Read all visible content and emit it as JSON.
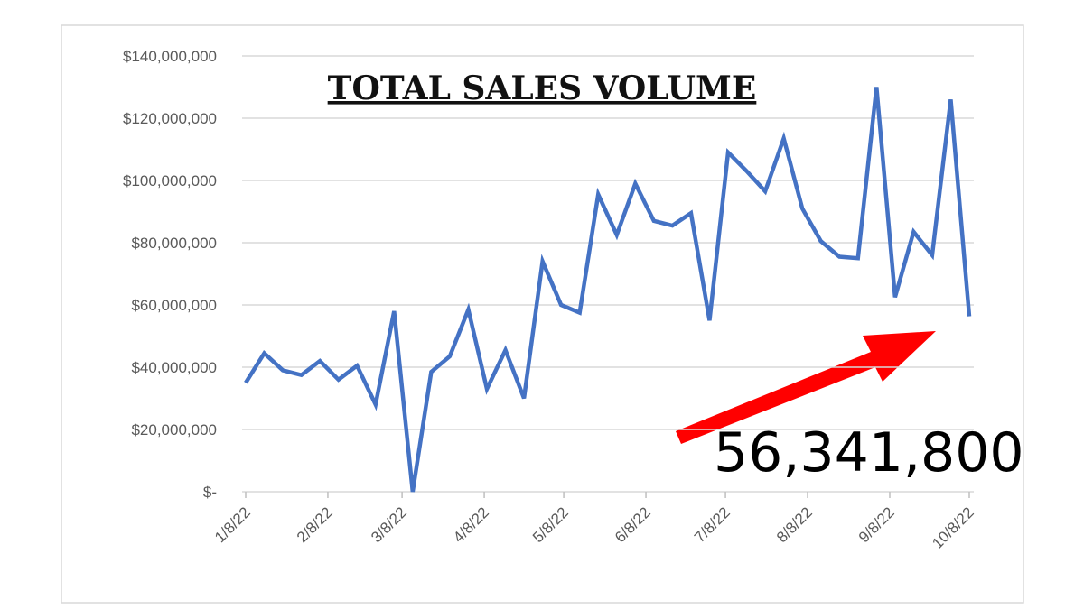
{
  "chart_data": {
    "type": "line",
    "title": "TOTAL SALES VOLUME",
    "annotation": "56,341,800",
    "x": [
      "1/8/22",
      "1/15/22",
      "1/22/22",
      "1/29/22",
      "2/5/22",
      "2/12/22",
      "2/19/22",
      "2/26/22",
      "3/5/22",
      "3/12/22",
      "3/19/22",
      "3/26/22",
      "4/2/22",
      "4/9/22",
      "4/16/22",
      "4/23/22",
      "4/30/22",
      "5/7/22",
      "5/14/22",
      "5/21/22",
      "5/28/22",
      "6/4/22",
      "6/11/22",
      "6/18/22",
      "6/25/22",
      "7/2/22",
      "7/9/22",
      "7/16/22",
      "7/23/22",
      "7/30/22",
      "8/6/22",
      "8/13/22",
      "8/20/22",
      "8/27/22",
      "9/3/22",
      "9/10/22",
      "9/17/22",
      "9/24/22",
      "10/1/22",
      "10/8/22"
    ],
    "series": [
      {
        "color": "#4472c4",
        "values": [
          35000000,
          44500000,
          39000000,
          37500000,
          42000000,
          36000000,
          40500000,
          28000000,
          58000000,
          0,
          38500000,
          43500000,
          58500000,
          33000000,
          45500000,
          30000000,
          74000000,
          60000000,
          57500000,
          95500000,
          82500000,
          99000000,
          87000000,
          85500000,
          89500000,
          55000000,
          109000000,
          103000000,
          96500000,
          113500000,
          91000000,
          80500000,
          75500000,
          75000000,
          130000000,
          62500000,
          83500000,
          76000000,
          126000000,
          56341800
        ]
      }
    ],
    "xlim": [
      "1/8/22",
      "10/8/22"
    ],
    "xticks": [
      "1/8/22",
      "2/8/22",
      "3/8/22",
      "4/8/22",
      "5/8/22",
      "6/8/22",
      "7/8/22",
      "8/8/22",
      "9/8/22",
      "10/8/22"
    ],
    "ylim": [
      0,
      140000000
    ],
    "yticks": [
      {
        "value": 0,
        "label": "$-"
      },
      {
        "value": 20000000,
        "label": "$20,000,000"
      },
      {
        "value": 40000000,
        "label": "$40,000,000"
      },
      {
        "value": 60000000,
        "label": "$60,000,000"
      },
      {
        "value": 80000000,
        "label": "$80,000,000"
      },
      {
        "value": 100000000,
        "label": "$100,000,000"
      },
      {
        "value": 120000000,
        "label": "$120,000,000"
      },
      {
        "value": 140000000,
        "label": "$140,000,000"
      }
    ],
    "grid": true
  }
}
